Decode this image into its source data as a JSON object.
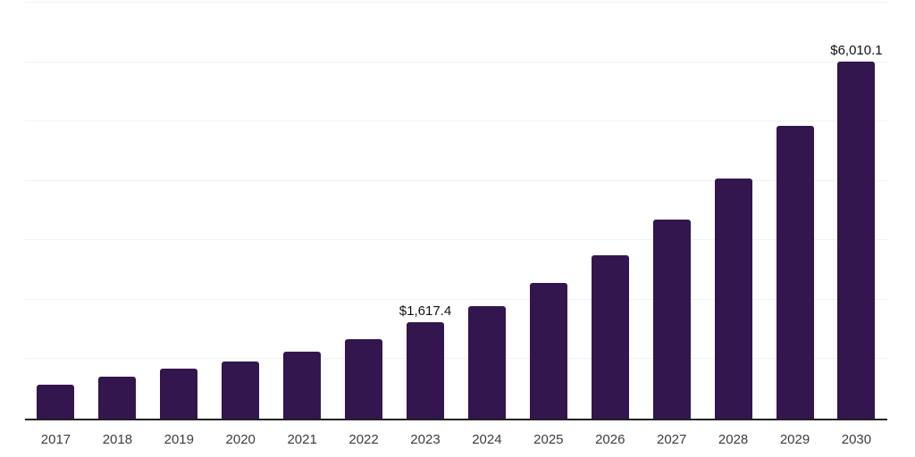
{
  "chart_data": {
    "type": "bar",
    "title": "",
    "xlabel": "",
    "ylabel": "",
    "categories": [
      "2017",
      "2018",
      "2019",
      "2020",
      "2021",
      "2022",
      "2023",
      "2024",
      "2025",
      "2026",
      "2027",
      "2028",
      "2029",
      "2030"
    ],
    "values": [
      570,
      705,
      840,
      960,
      1120,
      1335,
      1617.4,
      1890,
      2290,
      2755,
      3350,
      4035,
      4925,
      6010.1
    ],
    "data_labels": [
      "",
      "",
      "",
      "",
      "",
      "",
      "$1,617.4",
      "",
      "",
      "",
      "",
      "",
      "",
      "$6,010.1"
    ],
    "ylim": [
      0,
      7000
    ],
    "gridline_interval": 1000,
    "grid": true,
    "legend": false,
    "bar_color": "#33164d",
    "axis_line_color": "#222222",
    "gridline_color": "#f2f2f2",
    "tick_label_color": "#3d3d3d",
    "data_label_color": "#111111",
    "background_color": "#ffffff"
  }
}
